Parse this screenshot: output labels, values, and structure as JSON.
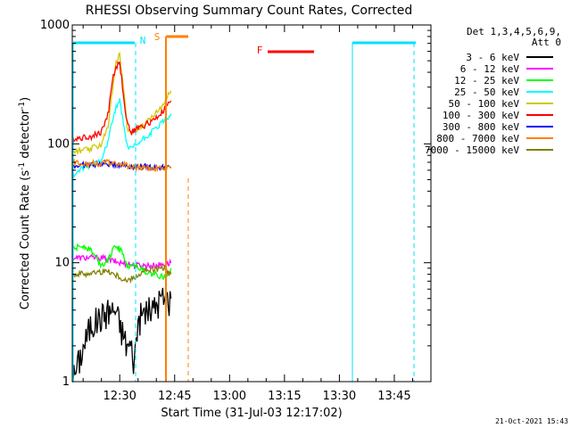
{
  "chart_data": {
    "type": "line",
    "title": "RHESSI Observing Summary Count Rates, Corrected",
    "xlabel": "Start Time (31-Jul-03 12:17:02)",
    "ylabel_main": "Corrected Count Rate (s",
    "ylabel_sup1": "-1",
    "ylabel_mid": " detector",
    "ylabel_sup2": "-1",
    "ylabel_end": ")",
    "xlim": [
      "12:17:02",
      "13:55:00"
    ],
    "ylim": [
      1,
      1000
    ],
    "yscale": "log",
    "x_ticks": [
      {
        "label": "12:30",
        "min": 30
      },
      {
        "label": "12:45",
        "min": 45
      },
      {
        "label": "13:00",
        "min": 60
      },
      {
        "label": "13:15",
        "min": 75
      },
      {
        "label": "13:30",
        "min": 90
      },
      {
        "label": "13:45",
        "min": 105
      }
    ],
    "y_ticks": [
      {
        "label": "1",
        "value": 1
      },
      {
        "label": "10",
        "value": 10
      },
      {
        "label": "100",
        "value": 100
      },
      {
        "label": "1000",
        "value": 1000
      }
    ],
    "legend_header": [
      "Det 1,3,4,5,6,9,",
      "Att 0"
    ],
    "legend_position": "right",
    "series": [
      {
        "name": "3 - 6 keV",
        "color": "#000000",
        "t": [
          17,
          22,
          27,
          29,
          30,
          31,
          32,
          33,
          34,
          35,
          37,
          39,
          41,
          42,
          43,
          44
        ],
        "v": [
          1,
          3,
          4,
          4,
          3,
          2.5,
          2,
          2,
          1.5,
          3.3,
          4,
          4,
          5,
          5,
          5,
          5
        ]
      },
      {
        "name": "6 - 12 keV",
        "color": "#ff00ff",
        "t": [
          17,
          20,
          25,
          30,
          35,
          40,
          44
        ],
        "v": [
          11,
          11,
          11,
          10,
          9.5,
          9.5,
          10
        ]
      },
      {
        "name": "12 - 25 keV",
        "color": "#00ff00",
        "t": [
          17,
          20,
          22,
          25,
          27,
          29,
          31,
          32,
          33,
          34,
          36,
          38,
          40,
          42,
          44
        ],
        "v": [
          13,
          14,
          13,
          9.5,
          11,
          14,
          12,
          9,
          10,
          9.5,
          9,
          8,
          8,
          7.5,
          9
        ]
      },
      {
        "name": "25 - 50 keV",
        "color": "#00ffff",
        "t": [
          17,
          19,
          22,
          25,
          27,
          28,
          29,
          30,
          31,
          32,
          33,
          35,
          38,
          40,
          42,
          44
        ],
        "v": [
          53,
          60,
          65,
          75,
          110,
          160,
          200,
          230,
          150,
          95,
          90,
          100,
          120,
          135,
          155,
          180
        ]
      },
      {
        "name": "50 - 100 keV",
        "color": "#d2c800",
        "t": [
          17,
          19,
          22,
          25,
          27,
          28,
          29,
          30,
          31,
          32,
          33,
          35,
          38,
          40,
          42,
          44
        ],
        "v": [
          85,
          88,
          90,
          100,
          150,
          280,
          480,
          560,
          300,
          140,
          120,
          135,
          160,
          185,
          220,
          280
        ]
      },
      {
        "name": "100 - 300 keV",
        "color": "#ff0000",
        "t": [
          17,
          19,
          22,
          25,
          27,
          28,
          29,
          30,
          31,
          32,
          33,
          35,
          38,
          40,
          42,
          44
        ],
        "v": [
          110,
          112,
          115,
          125,
          190,
          350,
          440,
          480,
          260,
          150,
          125,
          135,
          150,
          165,
          190,
          230
        ]
      },
      {
        "name": "300 - 800 keV",
        "color": "#0000ff",
        "t": [
          17,
          22,
          28,
          33,
          38,
          44
        ],
        "v": [
          65,
          67,
          68,
          65,
          64,
          63
        ]
      },
      {
        "name": "800 - 7000 keV",
        "color": "#ff8000",
        "t": [
          17,
          22,
          28,
          33,
          38,
          44
        ],
        "v": [
          70,
          68,
          70,
          64,
          63,
          62
        ]
      },
      {
        "name": "7000 - 15000 keV",
        "color": "#808000",
        "t": [
          17,
          22,
          27,
          32,
          37,
          42,
          44
        ],
        "v": [
          8,
          8.2,
          8.5,
          7,
          8.5,
          9,
          8
        ]
      }
    ],
    "annotations": [
      {
        "text": "N",
        "color": "#00e0ff"
      },
      {
        "text": "S",
        "color": "#ff8000"
      },
      {
        "text": "F",
        "color": "#ff0000"
      }
    ]
  },
  "footer_date": "21-Oct-2021 15:43"
}
